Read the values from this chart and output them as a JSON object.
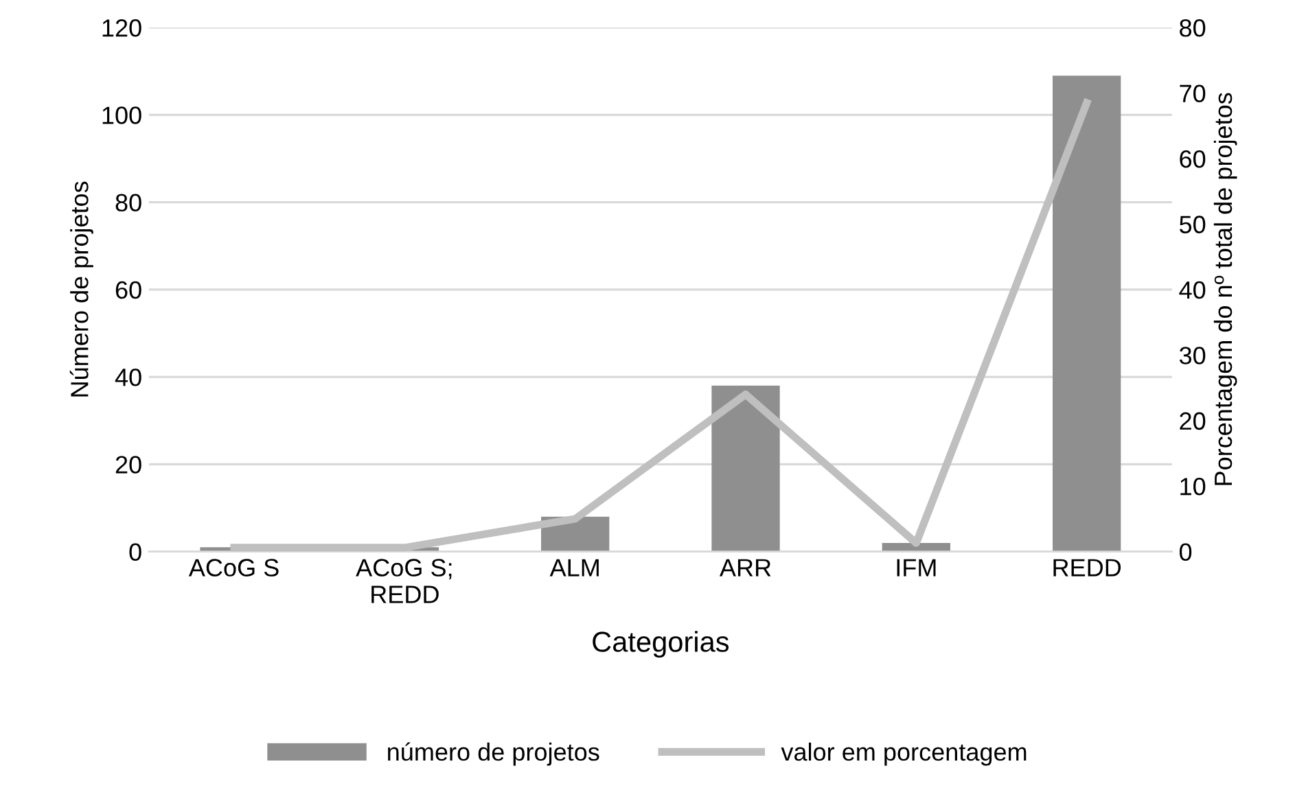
{
  "chart_data": {
    "type": "bar",
    "xlabel": "Categorias",
    "ylabel": "Número de projetos",
    "y2label": "Porcentagem do nº total de projetos",
    "categories": [
      "ACoG S",
      "ACoG S;\nREDD",
      "ALM",
      "ARR",
      "IFM",
      "REDD"
    ],
    "series": [
      {
        "name": "número de projetos",
        "color": "#8f8f8f",
        "values": [
          1,
          1,
          8,
          38,
          2,
          109
        ]
      },
      {
        "name": "valor em porcentagem",
        "type": "line",
        "axis": "y2",
        "color": "#bfbfbf",
        "values": [
          0.6,
          0.6,
          5,
          24,
          1.3,
          68.5
        ]
      }
    ],
    "ylim": [
      0,
      120
    ],
    "yticks": [
      0,
      20,
      40,
      60,
      80,
      100,
      120
    ],
    "y2lim": [
      0,
      80
    ],
    "y2ticks": [
      0,
      10,
      20,
      30,
      40,
      50,
      60,
      70,
      80
    ],
    "grid": "y",
    "legend": "bottom",
    "marker": "none",
    "line_style": "solid"
  }
}
